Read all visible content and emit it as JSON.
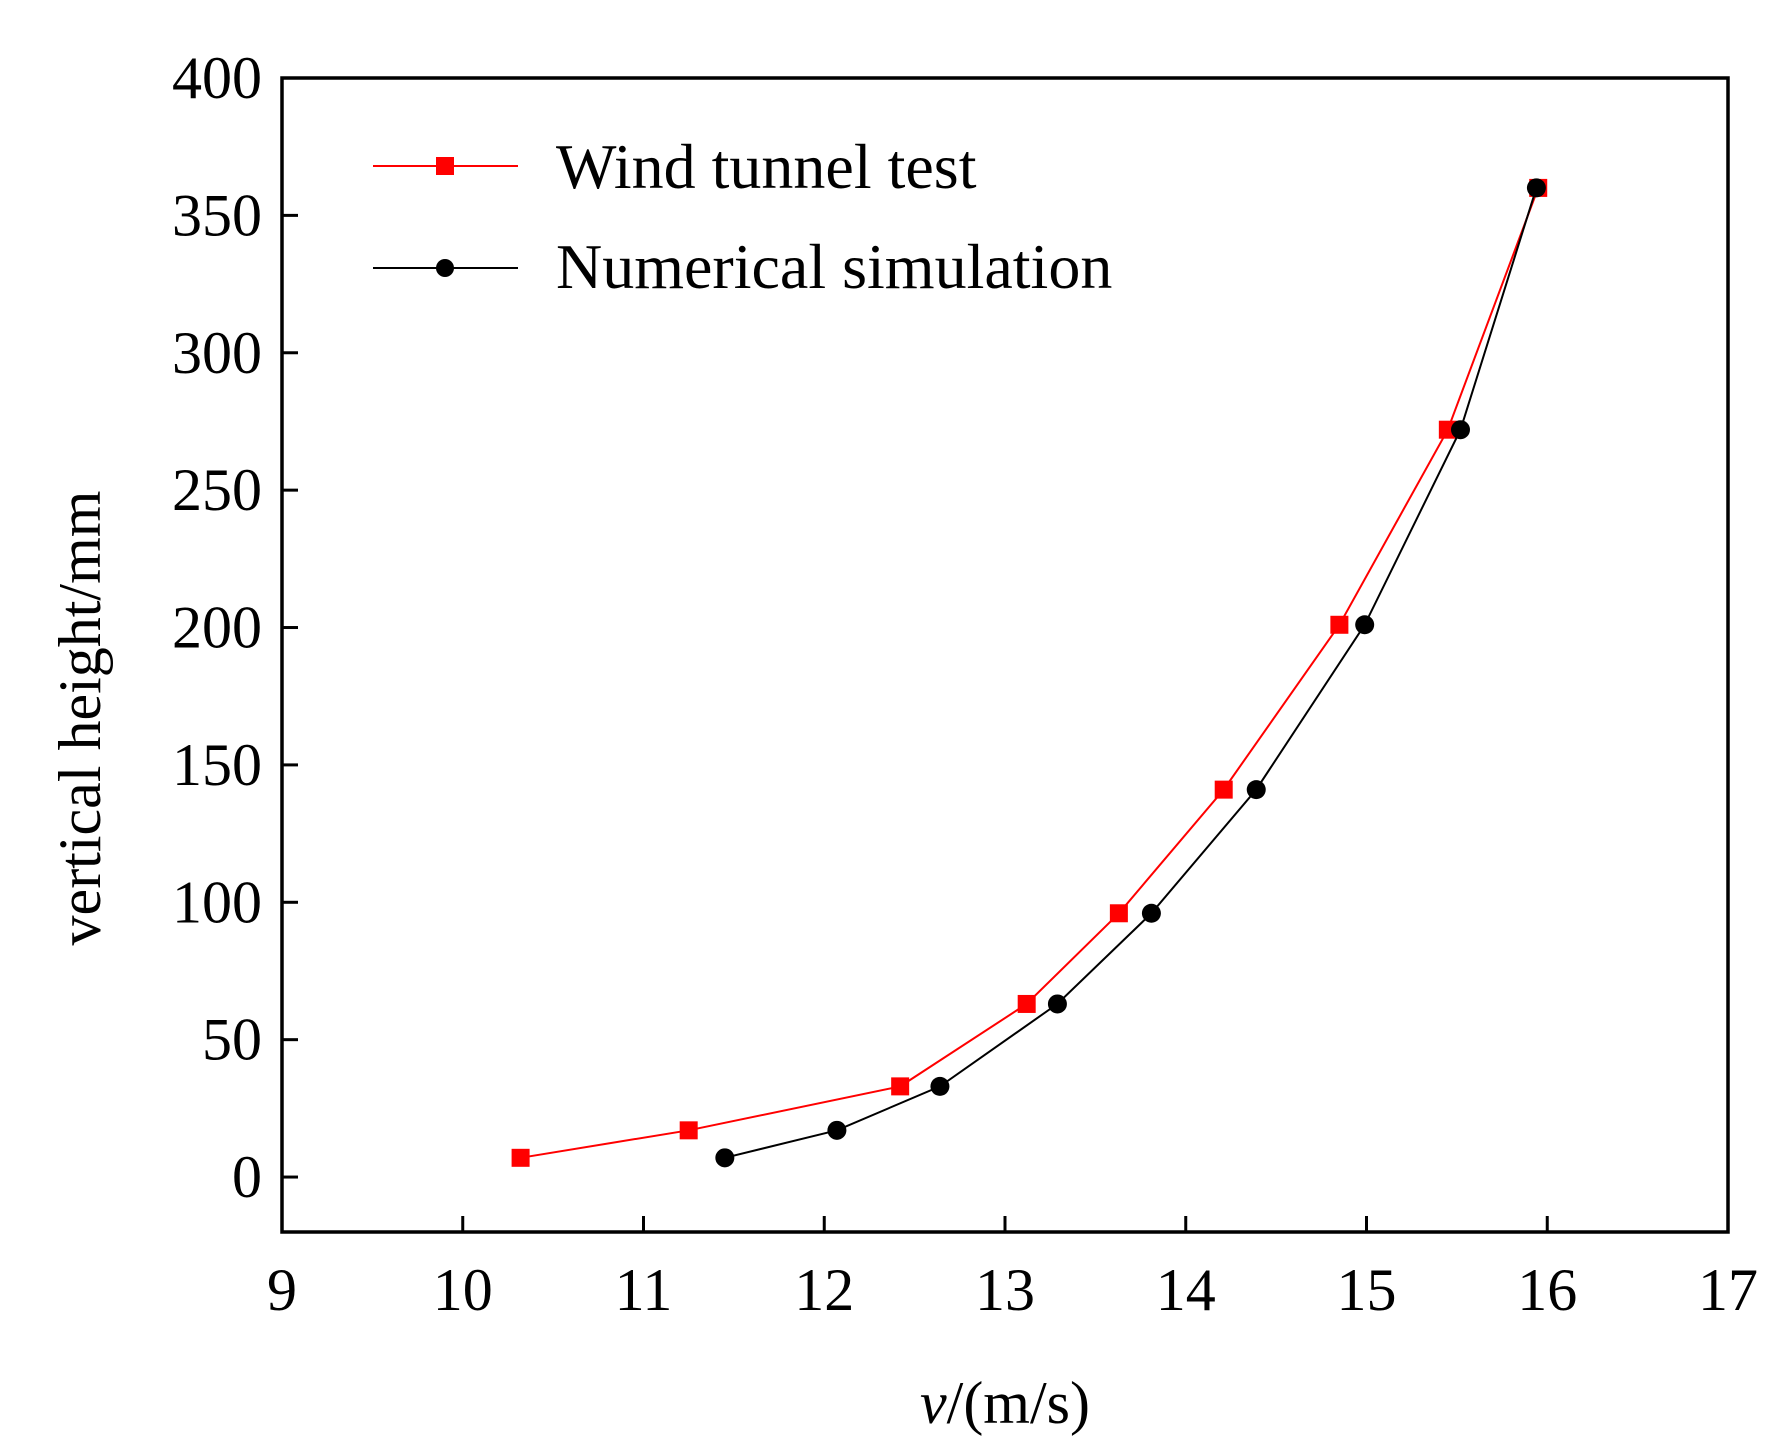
{
  "chart_data": {
    "type": "line",
    "title": "",
    "xlabel": "v/(m/s)",
    "xlabel_italic_part": "v",
    "xlabel_rest": "/(m/s)",
    "ylabel": "vertical height/mm",
    "xlim": [
      9,
      17
    ],
    "ylim": [
      -20,
      400
    ],
    "x_ticks": [
      9,
      10,
      11,
      12,
      13,
      14,
      15,
      16,
      17
    ],
    "y_ticks": [
      0,
      50,
      100,
      150,
      200,
      250,
      300,
      350,
      400
    ],
    "grid": false,
    "legend_position": "top-left",
    "series": [
      {
        "name": "Wind tunnel test",
        "color": "#ff0000",
        "marker": "square",
        "x": [
          10.32,
          11.25,
          12.42,
          13.12,
          13.63,
          14.21,
          14.85,
          15.45,
          15.95
        ],
        "y": [
          7,
          17,
          33,
          63,
          96,
          141,
          201,
          272,
          360
        ]
      },
      {
        "name": "Numerical simulation",
        "color": "#000000",
        "marker": "circle",
        "x": [
          11.45,
          12.07,
          12.64,
          13.29,
          13.81,
          14.39,
          14.99,
          15.52,
          15.94
        ],
        "y": [
          7,
          17,
          33,
          63,
          96,
          141,
          201,
          272,
          360
        ]
      }
    ]
  }
}
